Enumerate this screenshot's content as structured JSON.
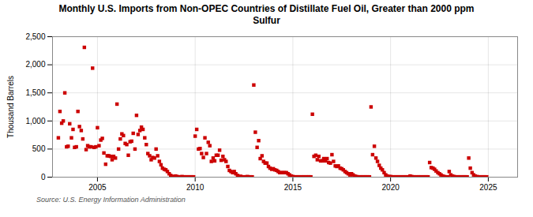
{
  "chart_data": {
    "type": "scatter",
    "title": "Monthly U.S. Imports from Non-OPEC Countries of Distillate Fuel Oil, Greater than 2000 ppm\nSulfur",
    "ylabel": "Thousand Barrels",
    "source": "Source: U.S. Energy Information Administration",
    "color": "#cc0000",
    "marker": "square",
    "grid": true,
    "xlim": [
      2002.7,
      2026.5
    ],
    "xticks": [
      2005,
      2010,
      2015,
      2020,
      2025
    ],
    "ylim": [
      0,
      2500
    ],
    "yticks": [
      0,
      500,
      {
        "value": 1000,
        "label": "1,000"
      },
      {
        "value": 1500,
        "label": "1,500"
      },
      {
        "value": 2000,
        "label": "2,000"
      },
      {
        "value": 2500,
        "label": "2,500"
      }
    ],
    "x": [
      2003.0,
      2003.08,
      2003.17,
      2003.25,
      2003.33,
      2003.42,
      2003.5,
      2003.58,
      2003.67,
      2003.75,
      2003.83,
      2003.92,
      2004.0,
      2004.08,
      2004.17,
      2004.25,
      2004.33,
      2004.42,
      2004.5,
      2004.58,
      2004.67,
      2004.75,
      2004.83,
      2004.92,
      2005.0,
      2005.08,
      2005.17,
      2005.25,
      2005.33,
      2005.42,
      2005.5,
      2005.58,
      2005.67,
      2005.75,
      2005.83,
      2005.92,
      2006.0,
      2006.08,
      2006.17,
      2006.25,
      2006.33,
      2006.42,
      2006.5,
      2006.58,
      2006.67,
      2006.75,
      2006.83,
      2006.92,
      2007.0,
      2007.08,
      2007.17,
      2007.25,
      2007.33,
      2007.42,
      2007.5,
      2007.58,
      2007.67,
      2007.75,
      2007.83,
      2007.92,
      2008.0,
      2008.08,
      2008.17,
      2008.25,
      2008.33,
      2008.42,
      2008.5,
      2008.58,
      2008.67,
      2008.75,
      2008.83,
      2008.92,
      2009.0,
      2009.08,
      2009.17,
      2009.25,
      2009.33,
      2009.42,
      2009.5,
      2009.58,
      2009.67,
      2009.75,
      2009.83,
      2009.92,
      2010.0,
      2010.08,
      2010.17,
      2010.25,
      2010.33,
      2010.42,
      2010.5,
      2010.58,
      2010.67,
      2010.75,
      2010.83,
      2010.92,
      2011.0,
      2011.08,
      2011.17,
      2011.25,
      2011.33,
      2011.42,
      2011.5,
      2011.58,
      2011.67,
      2011.75,
      2011.83,
      2011.92,
      2012.0,
      2012.08,
      2012.17,
      2012.25,
      2012.33,
      2012.42,
      2012.5,
      2012.58,
      2012.67,
      2012.75,
      2012.83,
      2012.92,
      2013.0,
      2013.08,
      2013.17,
      2013.25,
      2013.33,
      2013.42,
      2013.5,
      2013.58,
      2013.67,
      2013.75,
      2013.83,
      2013.92,
      2014.0,
      2014.08,
      2014.17,
      2014.25,
      2014.33,
      2014.42,
      2014.5,
      2014.58,
      2014.67,
      2014.75,
      2014.83,
      2014.92,
      2015.0,
      2015.08,
      2015.17,
      2015.25,
      2015.33,
      2015.42,
      2015.5,
      2015.58,
      2015.67,
      2015.75,
      2015.83,
      2015.92,
      2016.0,
      2016.08,
      2016.17,
      2016.25,
      2016.33,
      2016.42,
      2016.5,
      2016.58,
      2016.67,
      2016.75,
      2016.83,
      2016.92,
      2017.0,
      2017.08,
      2017.17,
      2017.25,
      2017.33,
      2017.42,
      2017.5,
      2017.58,
      2017.67,
      2017.75,
      2017.83,
      2017.92,
      2018.0,
      2018.08,
      2018.17,
      2018.25,
      2018.33,
      2018.42,
      2018.5,
      2018.58,
      2018.67,
      2018.75,
      2018.83,
      2018.92,
      2019.0,
      2019.08,
      2019.17,
      2019.25,
      2019.33,
      2019.42,
      2019.5,
      2019.58,
      2019.67,
      2019.75,
      2019.83,
      2019.92,
      2020.0,
      2020.08,
      2020.17,
      2020.25,
      2020.33,
      2020.42,
      2020.5,
      2020.58,
      2020.67,
      2020.75,
      2020.83,
      2020.92,
      2021.0,
      2021.08,
      2021.17,
      2021.25,
      2021.33,
      2021.42,
      2021.5,
      2021.58,
      2021.67,
      2021.75,
      2021.83,
      2021.92,
      2022.0,
      2022.08,
      2022.17,
      2022.25,
      2022.33,
      2022.42,
      2022.5,
      2022.58,
      2022.67,
      2022.75,
      2022.83,
      2022.92,
      2023.0,
      2023.08,
      2023.17,
      2023.25,
      2023.33,
      2023.42,
      2023.5,
      2023.58,
      2023.67,
      2023.75,
      2023.83,
      2023.92,
      2024.0,
      2024.08,
      2024.17,
      2024.25,
      2024.33,
      2024.42,
      2024.5,
      2024.58,
      2024.67,
      2024.75,
      2024.83,
      2024.92
    ],
    "values": [
      700,
      1170,
      960,
      1000,
      1500,
      540,
      550,
      950,
      700,
      850,
      530,
      540,
      1170,
      900,
      830,
      680,
      2310,
      490,
      560,
      540,
      540,
      1940,
      530,
      540,
      880,
      560,
      660,
      690,
      430,
      230,
      380,
      380,
      370,
      310,
      370,
      340,
      1300,
      500,
      680,
      770,
      740,
      600,
      580,
      390,
      630,
      640,
      780,
      500,
      1100,
      760,
      830,
      890,
      850,
      700,
      580,
      420,
      380,
      310,
      350,
      340,
      500,
      380,
      280,
      220,
      160,
      140,
      130,
      100,
      60,
      30,
      15,
      5,
      20,
      10,
      5,
      5,
      10,
      5,
      5,
      5,
      5,
      5,
      5,
      5,
      730,
      850,
      500,
      510,
      420,
      350,
      700,
      420,
      620,
      560,
      280,
      340,
      290,
      390,
      390,
      480,
      300,
      370,
      310,
      280,
      190,
      120,
      100,
      80,
      100,
      60,
      30,
      10,
      15,
      5,
      5,
      5,
      10,
      5,
      5,
      5,
      1640,
      800,
      530,
      650,
      330,
      380,
      280,
      250,
      250,
      190,
      160,
      140,
      150,
      130,
      120,
      100,
      80,
      80,
      80,
      80,
      80,
      60,
      40,
      20,
      10,
      5,
      5,
      5,
      5,
      5,
      5,
      5,
      5,
      5,
      5,
      5,
      1120,
      370,
      390,
      310,
      370,
      290,
      290,
      330,
      290,
      330,
      260,
      250,
      400,
      280,
      200,
      190,
      200,
      160,
      150,
      130,
      100,
      80,
      60,
      40,
      60,
      40,
      20,
      10,
      5,
      5,
      5,
      5,
      5,
      5,
      5,
      5,
      1250,
      400,
      550,
      340,
      280,
      210,
      160,
      130,
      80,
      40,
      20,
      10,
      10,
      5,
      5,
      5,
      5,
      5,
      5,
      5,
      5,
      5,
      5,
      5,
      20,
      10,
      5,
      5,
      5,
      5,
      5,
      5,
      5,
      5,
      5,
      5,
      260,
      170,
      160,
      140,
      110,
      80,
      60,
      40,
      20,
      10,
      5,
      5,
      100,
      40,
      20,
      10,
      5,
      5,
      5,
      5,
      5,
      5,
      5,
      5,
      340,
      160,
      80,
      40,
      20,
      10,
      5,
      5,
      5,
      5,
      5,
      5
    ]
  }
}
